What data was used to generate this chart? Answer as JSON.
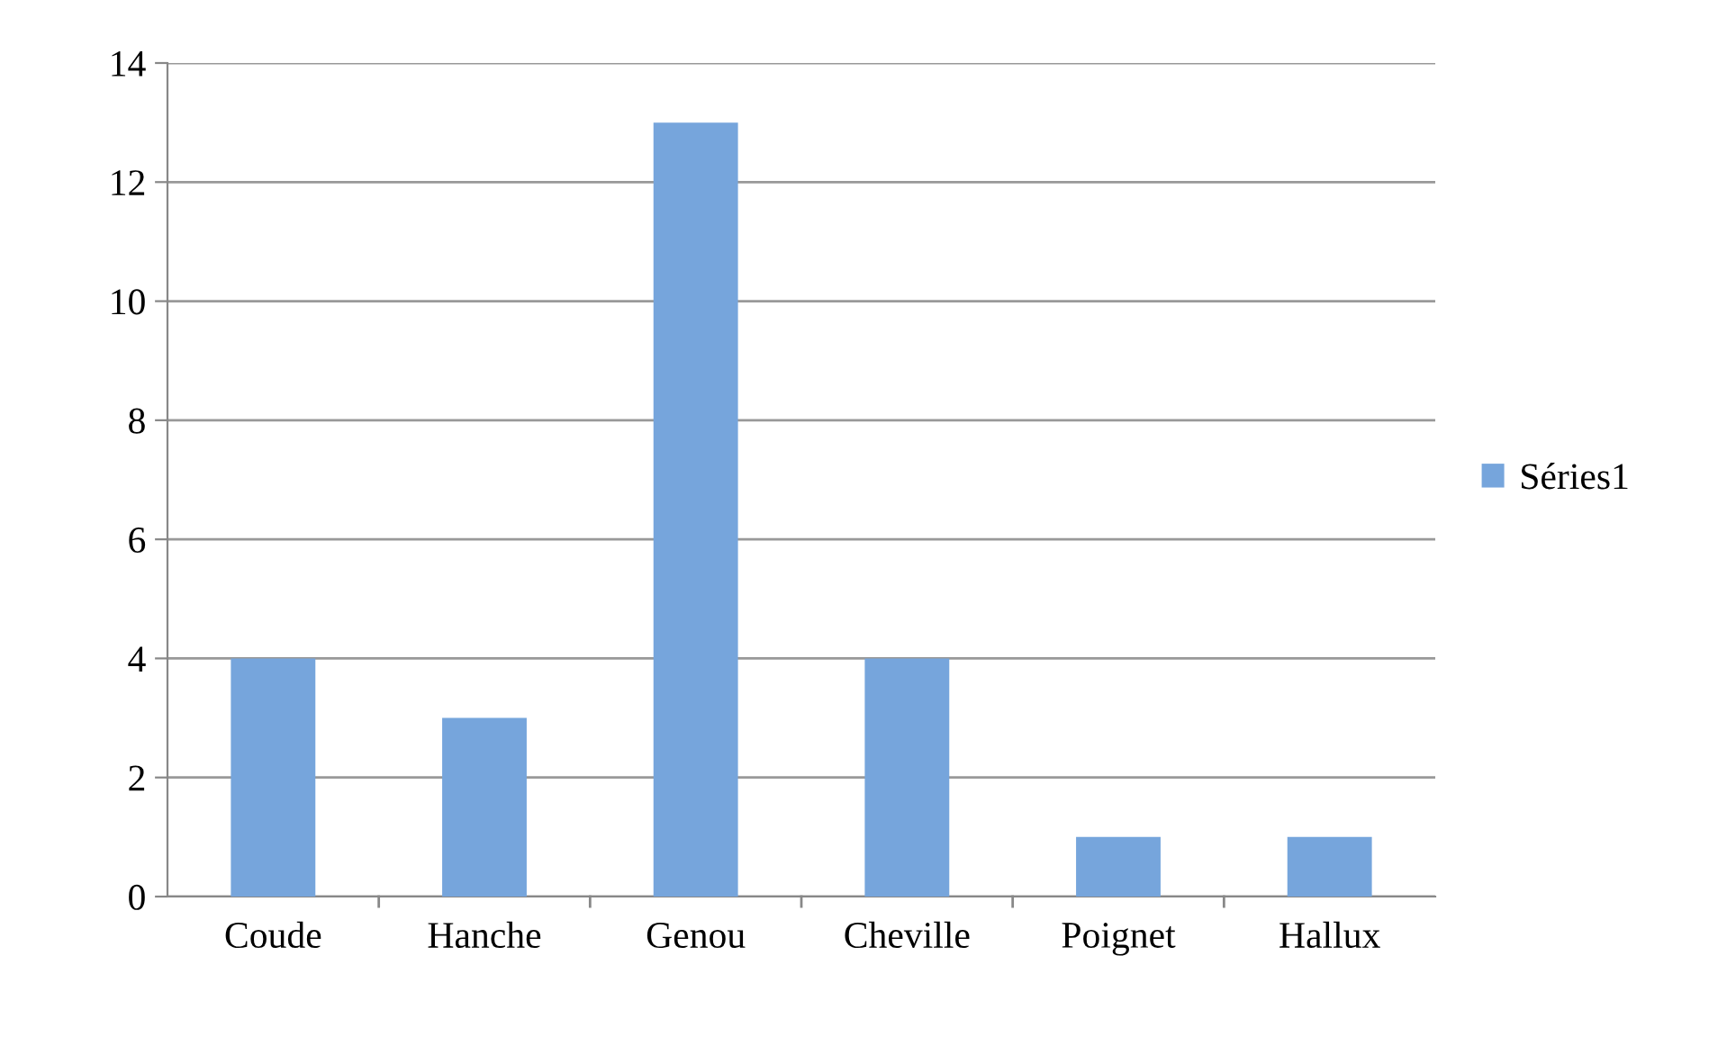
{
  "chart_data": {
    "type": "bar",
    "categories": [
      "Coude",
      "Hanche",
      "Genou",
      "Cheville",
      "Poignet",
      "Hallux"
    ],
    "series": [
      {
        "name": "Séries1",
        "color": "#76a5dc",
        "values": [
          4,
          3,
          13,
          4,
          1,
          1
        ]
      }
    ],
    "ylim": [
      0,
      14
    ],
    "yticks": [
      0,
      2,
      4,
      6,
      8,
      10,
      12,
      14
    ],
    "grid": "y",
    "legend": "right"
  }
}
